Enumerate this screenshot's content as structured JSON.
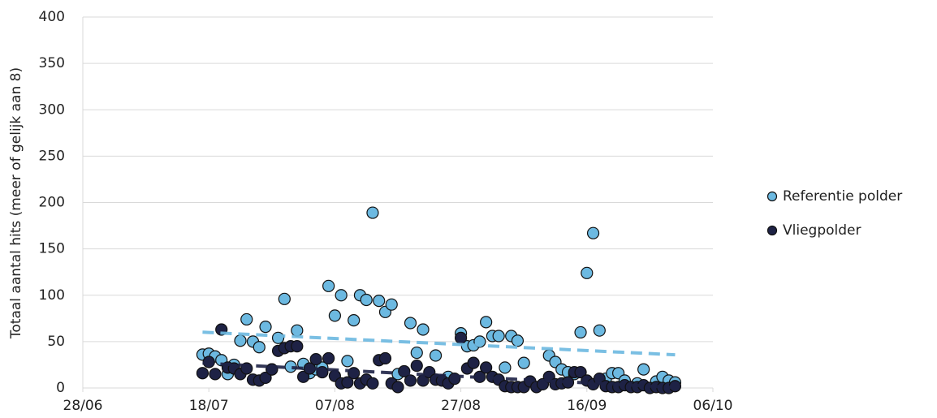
{
  "chart_data": {
    "type": "scatter",
    "y_label": "Totaal aantal hits (meer of gelijk aan 8)",
    "xlim": [
      "28/06",
      "06/10"
    ],
    "xticks": [
      "28/06",
      "18/07",
      "07/08",
      "27/08",
      "16/09",
      "06/10"
    ],
    "ylim": [
      0,
      400
    ],
    "yticks": [
      0,
      50,
      100,
      150,
      200,
      250,
      300,
      350,
      400
    ],
    "grid": true,
    "trendline": true,
    "legend": "right",
    "series": [
      {
        "name": "Referentie polder",
        "color": "#6cb9e1",
        "x": [
          "17/07",
          "18/07",
          "19/07",
          "20/07",
          "21/07",
          "22/07",
          "23/07",
          "24/07",
          "25/07",
          "26/07",
          "27/07",
          "28/07",
          "29/07",
          "30/07",
          "31/07",
          "01/08",
          "02/08",
          "03/08",
          "04/08",
          "05/08",
          "06/08",
          "07/08",
          "08/08",
          "09/08",
          "10/08",
          "11/08",
          "12/08",
          "13/08",
          "14/08",
          "15/08",
          "16/08",
          "17/08",
          "19/08",
          "20/08",
          "21/08",
          "23/08",
          "25/08",
          "27/08",
          "28/08",
          "29/08",
          "30/08",
          "31/08",
          "01/09",
          "02/09",
          "03/09",
          "04/09",
          "05/09",
          "06/09",
          "10/09",
          "11/09",
          "12/09",
          "13/09",
          "14/09",
          "15/09",
          "16/09",
          "17/09",
          "18/09",
          "19/09",
          "20/09",
          "21/09",
          "22/09",
          "24/09",
          "25/09",
          "27/09",
          "28/09",
          "29/09",
          "30/09"
        ],
        "values": [
          36,
          37,
          34,
          30,
          15,
          25,
          51,
          74,
          50,
          44,
          66,
          20,
          54,
          96,
          23,
          62,
          26,
          16,
          20,
          22,
          110,
          78,
          100,
          29,
          73,
          100,
          95,
          189,
          94,
          82,
          90,
          15,
          70,
          38,
          63,
          35,
          12,
          59,
          45,
          46,
          50,
          71,
          56,
          56,
          22,
          56,
          51,
          27,
          35,
          28,
          20,
          17,
          15,
          60,
          124,
          167,
          62,
          10,
          16,
          16,
          8,
          5,
          20,
          7,
          12,
          8,
          6
        ]
      },
      {
        "name": "Vliegpolder",
        "color": "#1e2245",
        "x": [
          "17/07",
          "18/07",
          "19/07",
          "20/07",
          "21/07",
          "22/07",
          "23/07",
          "24/07",
          "25/07",
          "26/07",
          "27/07",
          "28/07",
          "29/07",
          "30/07",
          "31/07",
          "01/08",
          "02/08",
          "03/08",
          "04/08",
          "05/08",
          "06/08",
          "07/08",
          "08/08",
          "09/08",
          "10/08",
          "11/08",
          "12/08",
          "13/08",
          "14/08",
          "15/08",
          "16/08",
          "17/08",
          "18/08",
          "19/08",
          "20/08",
          "21/08",
          "22/08",
          "23/08",
          "24/08",
          "25/08",
          "26/08",
          "27/08",
          "28/08",
          "29/08",
          "30/08",
          "31/08",
          "01/09",
          "02/09",
          "03/09",
          "04/09",
          "05/09",
          "06/09",
          "07/09",
          "08/09",
          "09/09",
          "10/09",
          "11/09",
          "12/09",
          "13/09",
          "14/09",
          "15/09",
          "16/09",
          "17/09",
          "18/09",
          "19/09",
          "20/09",
          "21/09",
          "22/09",
          "23/09",
          "24/09",
          "25/09",
          "26/09",
          "27/09",
          "28/09",
          "29/09",
          "30/09"
        ],
        "values": [
          16,
          28,
          15,
          63,
          22,
          21,
          15,
          21,
          9,
          8,
          11,
          20,
          40,
          43,
          45,
          45,
          12,
          21,
          31,
          17,
          32,
          13,
          5,
          6,
          16,
          5,
          9,
          5,
          30,
          32,
          5,
          1,
          18,
          8,
          24,
          8,
          17,
          9,
          8,
          5,
          10,
          54,
          21,
          27,
          12,
          22,
          12,
          9,
          2,
          1,
          1,
          1,
          7,
          1,
          4,
          12,
          4,
          5,
          6,
          17,
          17,
          8,
          4,
          10,
          2,
          1,
          1,
          3,
          1,
          1,
          3,
          0,
          1,
          0,
          0,
          2
        ]
      }
    ]
  }
}
